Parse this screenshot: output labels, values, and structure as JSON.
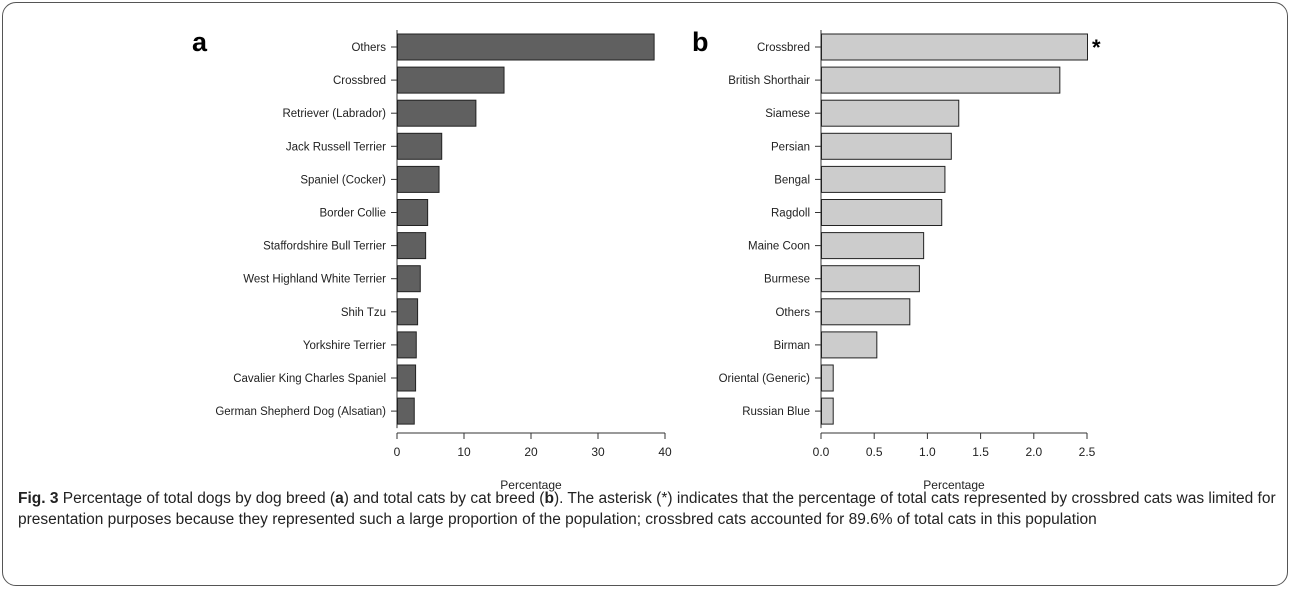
{
  "chart_data": [
    {
      "type": "bar",
      "orientation": "horizontal",
      "panel_label": "a",
      "title": "",
      "xlabel": "Percentage",
      "ylabel": "",
      "xlim": [
        0,
        40
      ],
      "xticks": [
        0,
        10,
        20,
        30,
        40
      ],
      "bar_color": "#606060",
      "categories": [
        "Others",
        "Crossbred",
        "Retriever (Labrador)",
        "Jack Russell Terrier",
        "Spaniel (Cocker)",
        "Border Collie",
        "Staffordshire Bull Terrier",
        "West Highland White Terrier",
        "Shih Tzu",
        "Yorkshire Terrier",
        "Cavalier King Charles Spaniel",
        "German Shepherd Dog (Alsatian)"
      ],
      "values": [
        38.3,
        15.9,
        11.7,
        6.6,
        6.2,
        4.5,
        4.2,
        3.4,
        3.0,
        2.8,
        2.7,
        2.5
      ],
      "annotation": ""
    },
    {
      "type": "bar",
      "orientation": "horizontal",
      "panel_label": "b",
      "title": "",
      "xlabel": "Percentage",
      "ylabel": "",
      "xlim": [
        0,
        2.5
      ],
      "xticks": [
        "0.0",
        "0.5",
        "1.0",
        "1.5",
        "2.0",
        "2.5"
      ],
      "bar_color": "#cccccc",
      "categories": [
        "Crossbred",
        "British Shorthair",
        "Siamese",
        "Persian",
        "Bengal",
        "Ragdoll",
        "Maine Coon",
        "Burmese",
        "Others",
        "Birman",
        "Oriental (Generic)",
        "Russian Blue"
      ],
      "values": [
        2.5,
        2.24,
        1.29,
        1.22,
        1.16,
        1.13,
        0.96,
        0.92,
        0.83,
        0.52,
        0.11,
        0.11
      ],
      "annotation": "*"
    }
  ],
  "caption": {
    "fig_label": "Fig. 3",
    "text_1": " Percentage of total dogs by dog breed (",
    "bold_a": "a",
    "text_2": ") and total cats by cat breed (",
    "bold_b": "b",
    "text_3": "). The asterisk (*) indicates that the percentage of total cats represented by crossbred cats was limited for presentation purposes because they represented such a large proportion of the population; crossbred cats accounted for 89.6% of total cats in this population"
  }
}
